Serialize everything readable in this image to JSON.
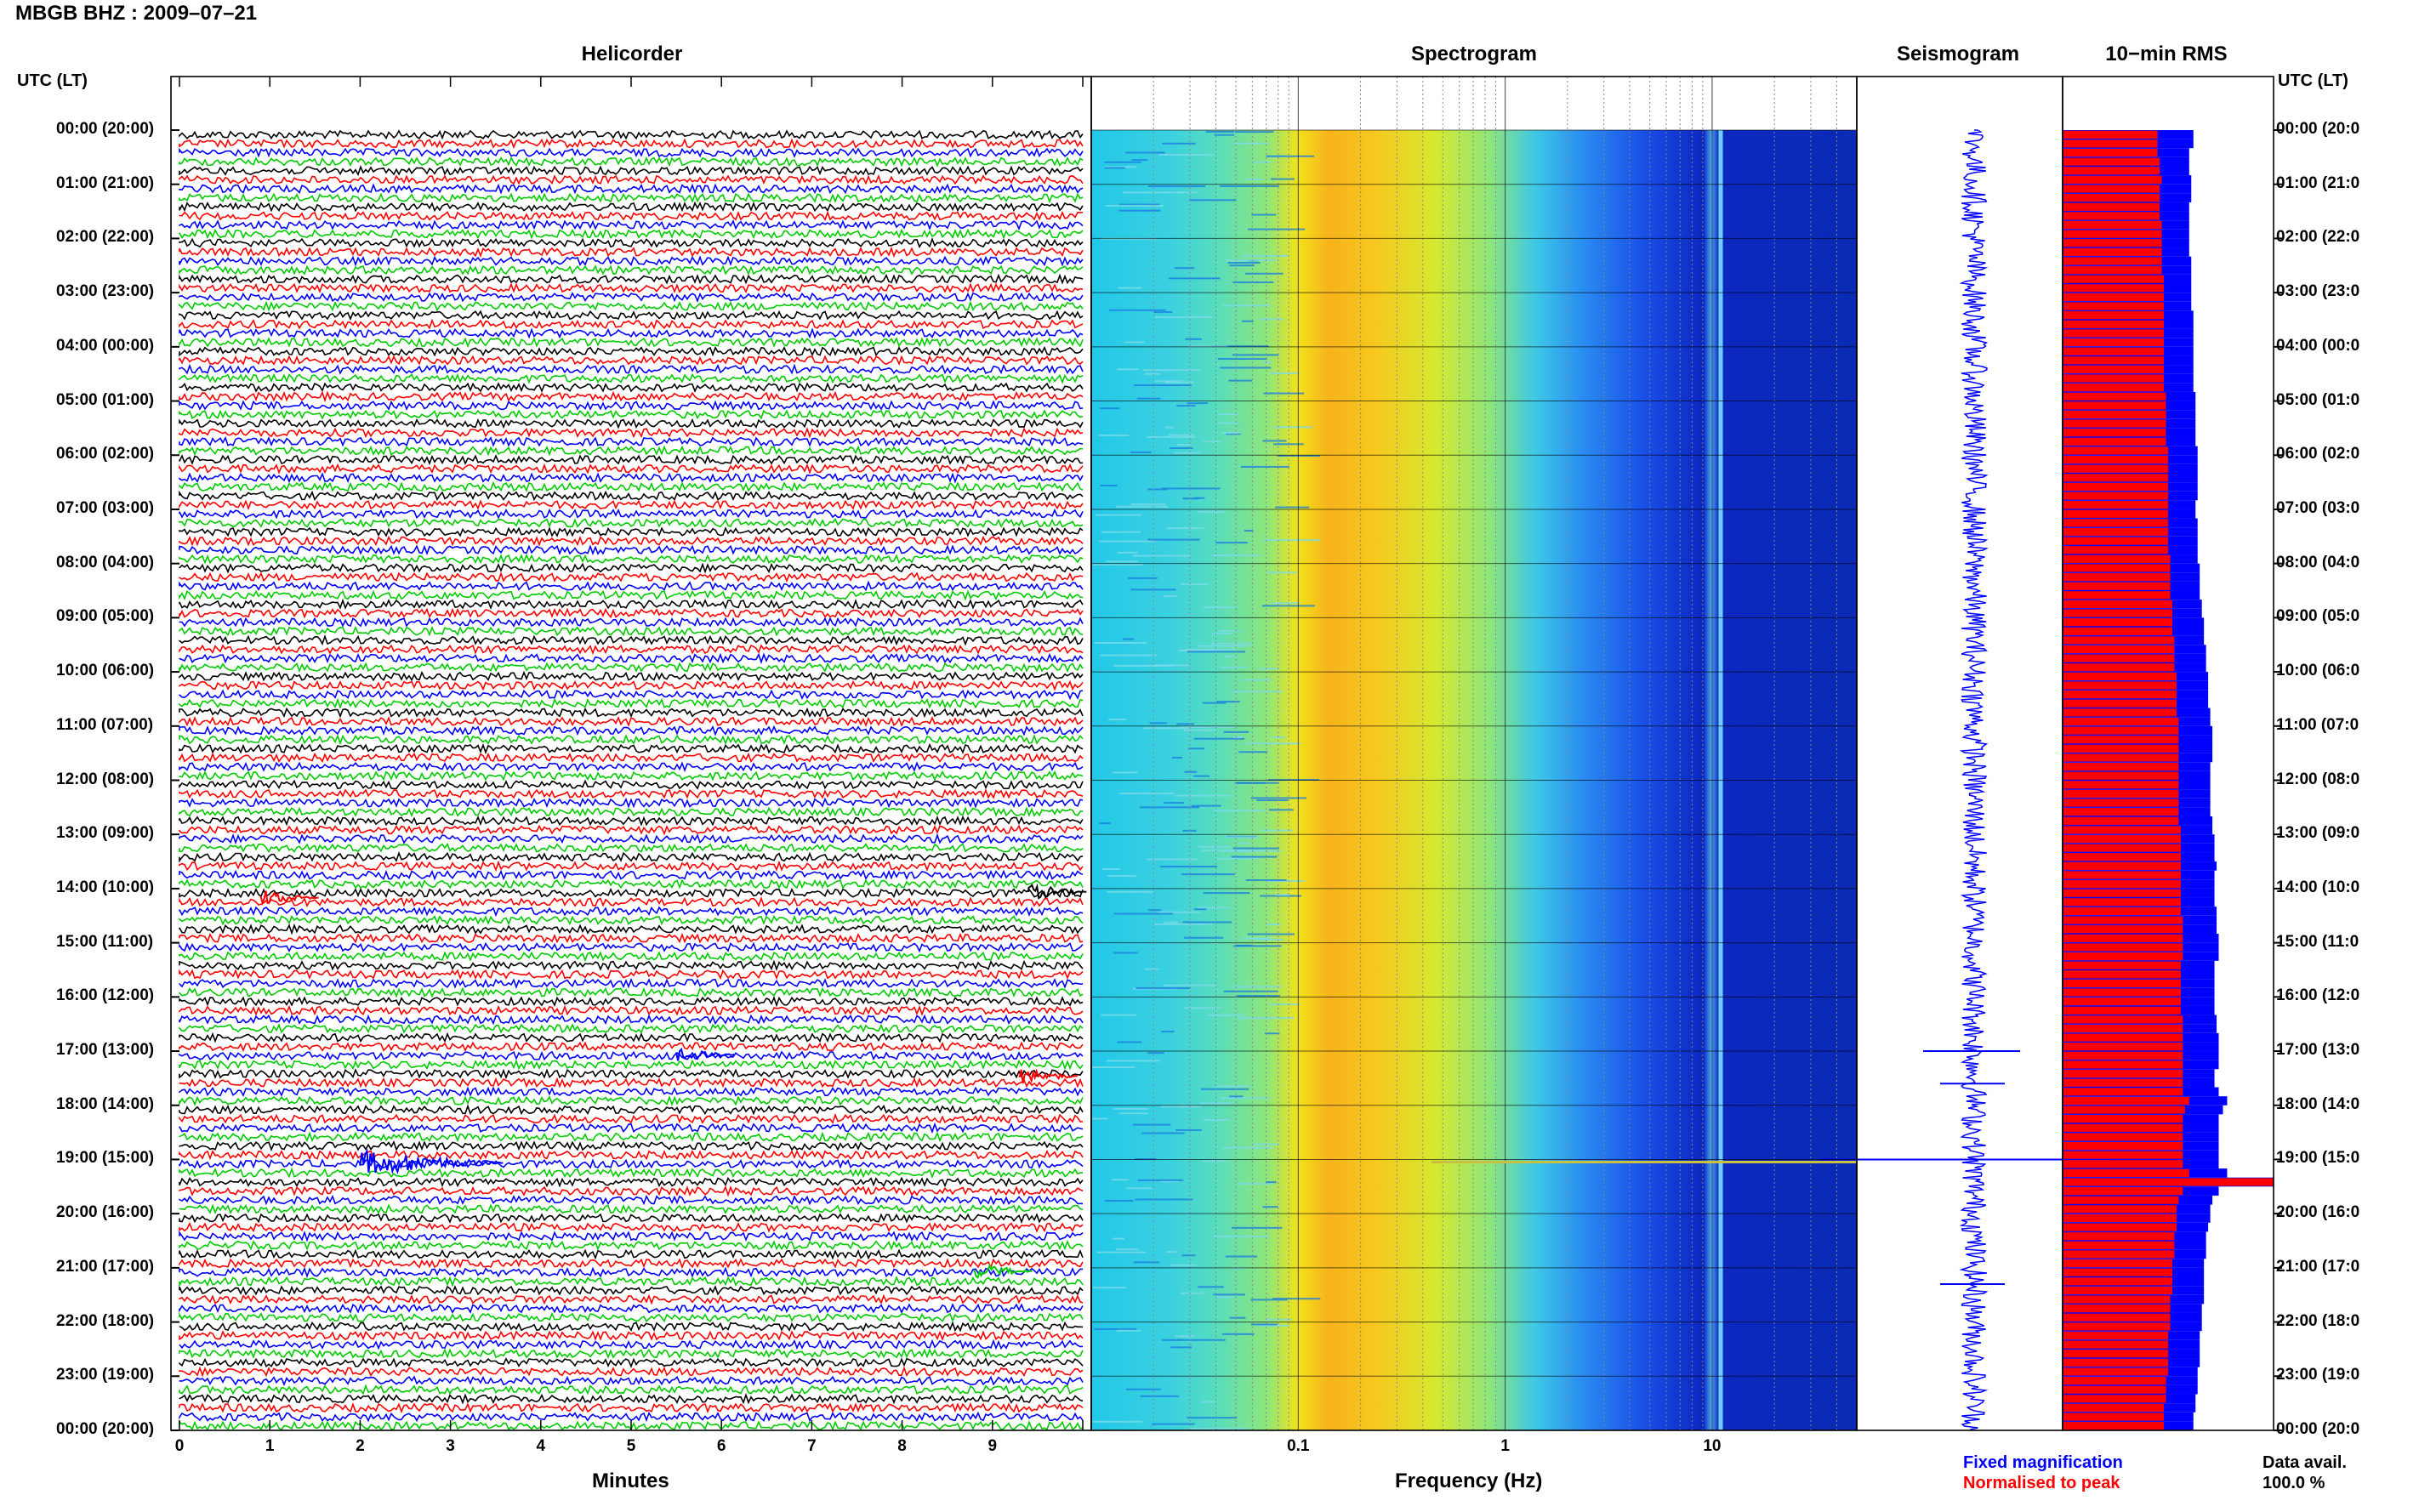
{
  "title": "MBGB BHZ : 2009–07–21",
  "panels": {
    "helicorder": "Helicorder",
    "spectrogram": "Spectrogram",
    "seismogram": "Seismogram",
    "rms": "10−min RMS"
  },
  "utc_label": "UTC (LT)",
  "hour_labels": [
    "00:00 (20:00)",
    "01:00 (21:00)",
    "02:00 (22:00)",
    "03:00 (23:00)",
    "04:00 (00:00)",
    "05:00 (01:00)",
    "06:00 (02:00)",
    "07:00 (03:00)",
    "08:00 (04:00)",
    "09:00 (05:00)",
    "10:00 (06:00)",
    "11:00 (07:00)",
    "12:00 (08:00)",
    "13:00 (09:00)",
    "14:00 (10:00)",
    "15:00 (11:00)",
    "16:00 (12:00)",
    "17:00 (13:00)",
    "18:00 (14:00)",
    "19:00 (15:00)",
    "20:00 (16:00)",
    "21:00 (17:00)",
    "22:00 (18:00)",
    "23:00 (19:00)",
    "00:00 (20:00)"
  ],
  "right_hour_labels": [
    "00:00 (20:0",
    "01:00 (21:0",
    "02:00 (22:0",
    "03:00 (23:0",
    "04:00 (00:0",
    "05:00 (01:0",
    "06:00 (02:0",
    "07:00 (03:0",
    "08:00 (04:0",
    "09:00 (05:0",
    "10:00 (06:0",
    "11:00 (07:0",
    "12:00 (08:0",
    "13:00 (09:0",
    "14:00 (10:0",
    "15:00 (11:0",
    "16:00 (12:0",
    "17:00 (13:0",
    "18:00 (14:0",
    "19:00 (15:0",
    "20:00 (16:0",
    "21:00 (17:0",
    "22:00 (18:0",
    "23:00 (19:0",
    "00:00 (20:0"
  ],
  "minute_ticks": [
    "0",
    "1",
    "2",
    "3",
    "4",
    "5",
    "6",
    "7",
    "8",
    "9"
  ],
  "xlabel_minutes": "Minutes",
  "freq_ticks": [
    "0.1",
    "1",
    "10"
  ],
  "xlabel_frequency": "Frequency (Hz)",
  "legend": {
    "fixed": "Fixed magnification",
    "normalised": "Normalised to peak"
  },
  "data_avail": {
    "label": "Data avail.",
    "value": "100.0 %"
  },
  "colors": {
    "trace_cycle": [
      "#000000",
      "#ff0000",
      "#0000ff",
      "#00cc00"
    ],
    "rms_fixed": "#0000ff",
    "rms_norm": "#ff0000"
  },
  "chart_data": [
    {
      "type": "line",
      "panel": "helicorder",
      "xlabel": "Minutes",
      "xlim": [
        0,
        10
      ],
      "x_ticks": [
        0,
        1,
        2,
        3,
        4,
        5,
        6,
        7,
        8,
        9
      ],
      "y_ticks": [
        "00:00 (20:00)",
        "01:00 (21:00)",
        "02:00 (22:00)",
        "03:00 (23:00)",
        "04:00 (00:00)",
        "05:00 (01:00)",
        "06:00 (02:00)",
        "07:00 (03:00)",
        "08:00 (04:00)",
        "09:00 (05:00)",
        "10:00 (06:00)",
        "11:00 (07:00)",
        "12:00 (08:00)",
        "13:00 (09:00)",
        "14:00 (10:00)",
        "15:00 (11:00)",
        "16:00 (12:00)",
        "17:00 (13:00)",
        "18:00 (14:00)",
        "19:00 (15:00)",
        "20:00 (16:00)",
        "21:00 (17:00)",
        "22:00 (18:00)",
        "23:00 (19:00)",
        "00:00 (20:00)"
      ],
      "trace_count": 144,
      "events": [
        {
          "hour": 17.0,
          "minute": 5.5,
          "color": "blue"
        },
        {
          "hour": 17.4,
          "minute": 9.3,
          "color": "red"
        },
        {
          "hour": 19.0,
          "minute": 2.0,
          "color": "blue"
        },
        {
          "hour": 21.0,
          "minute": 8.8,
          "color": "green"
        },
        {
          "hour": 14.0,
          "minute": 9.4,
          "color": "black"
        },
        {
          "hour": 14.1,
          "minute": 0.9,
          "color": "red"
        }
      ]
    },
    {
      "type": "heatmap",
      "panel": "spectrogram",
      "xlabel": "Frequency (Hz)",
      "x_scale": "log",
      "xlim": [
        0.01,
        50
      ],
      "x_ticks": [
        0.1,
        1,
        10
      ],
      "peak_band_hz": [
        0.2,
        0.5
      ],
      "spectral_line_hz": 11
    },
    {
      "type": "line",
      "panel": "seismogram",
      "events_hours": [
        17.0,
        17.6,
        19.0,
        21.3
      ]
    },
    {
      "type": "bar",
      "panel": "rms",
      "series": [
        {
          "name": "Fixed magnification",
          "values": [
            0.62,
            0.62,
            0.6,
            0.6,
            0.6,
            0.61,
            0.61,
            0.61,
            0.6,
            0.6,
            0.6,
            0.6,
            0.6,
            0.6,
            0.61,
            0.61,
            0.61,
            0.61,
            0.61,
            0.61,
            0.62,
            0.62,
            0.62,
            0.62,
            0.62,
            0.62,
            0.62,
            0.62,
            0.62,
            0.63,
            0.63,
            0.63,
            0.63,
            0.63,
            0.63,
            0.64,
            0.64,
            0.64,
            0.64,
            0.64,
            0.64,
            0.63,
            0.63,
            0.64,
            0.64,
            0.64,
            0.64,
            0.64,
            0.65,
            0.65,
            0.65,
            0.65,
            0.66,
            0.66,
            0.67,
            0.67,
            0.67,
            0.68,
            0.68,
            0.68,
            0.69,
            0.69,
            0.69,
            0.69,
            0.7,
            0.7,
            0.71,
            0.71,
            0.71,
            0.71,
            0.7,
            0.7,
            0.7,
            0.7,
            0.7,
            0.7,
            0.71,
            0.71,
            0.72,
            0.72,
            0.72,
            0.73,
            0.72,
            0.72,
            0.72,
            0.72,
            0.73,
            0.73,
            0.73,
            0.74,
            0.74,
            0.74,
            0.72,
            0.72,
            0.72,
            0.72,
            0.72,
            0.72,
            0.73,
            0.73,
            0.74,
            0.74,
            0.74,
            0.74,
            0.72,
            0.72,
            0.74,
            0.78,
            0.76,
            0.74,
            0.74,
            0.74,
            0.74,
            0.74,
            0.74,
            0.78,
            1.0,
            0.74,
            0.71,
            0.7,
            0.7,
            0.69,
            0.68,
            0.68,
            0.68,
            0.67,
            0.67,
            0.67,
            0.67,
            0.67,
            0.66,
            0.66,
            0.66,
            0.65,
            0.65,
            0.65,
            0.65,
            0.64,
            0.64,
            0.64,
            0.63,
            0.63,
            0.62,
            0.62
          ]
        },
        {
          "name": "Normalised to peak",
          "values": [
            0.45,
            0.45,
            0.45,
            0.46,
            0.46,
            0.47,
            0.46,
            0.46,
            0.46,
            0.46,
            0.47,
            0.47,
            0.47,
            0.47,
            0.47,
            0.47,
            0.48,
            0.48,
            0.48,
            0.48,
            0.48,
            0.48,
            0.48,
            0.48,
            0.48,
            0.48,
            0.48,
            0.48,
            0.48,
            0.49,
            0.49,
            0.49,
            0.49,
            0.49,
            0.49,
            0.5,
            0.5,
            0.5,
            0.5,
            0.5,
            0.5,
            0.5,
            0.5,
            0.5,
            0.5,
            0.5,
            0.5,
            0.51,
            0.51,
            0.51,
            0.51,
            0.51,
            0.52,
            0.52,
            0.52,
            0.52,
            0.53,
            0.53,
            0.53,
            0.53,
            0.54,
            0.54,
            0.54,
            0.54,
            0.54,
            0.55,
            0.55,
            0.55,
            0.55,
            0.55,
            0.55,
            0.55,
            0.55,
            0.55,
            0.55,
            0.55,
            0.55,
            0.56,
            0.56,
            0.56,
            0.56,
            0.56,
            0.56,
            0.56,
            0.56,
            0.56,
            0.56,
            0.57,
            0.57,
            0.57,
            0.57,
            0.57,
            0.56,
            0.56,
            0.56,
            0.56,
            0.56,
            0.56,
            0.57,
            0.57,
            0.57,
            0.57,
            0.57,
            0.57,
            0.57,
            0.57,
            0.57,
            0.6,
            0.58,
            0.57,
            0.57,
            0.57,
            0.57,
            0.57,
            0.57,
            0.6,
            1.0,
            0.57,
            0.55,
            0.54,
            0.54,
            0.54,
            0.53,
            0.53,
            0.53,
            0.52,
            0.52,
            0.52,
            0.52,
            0.51,
            0.51,
            0.51,
            0.51,
            0.5,
            0.5,
            0.5,
            0.5,
            0.5,
            0.49,
            0.49,
            0.49,
            0.48,
            0.48,
            0.48
          ]
        }
      ]
    }
  ]
}
